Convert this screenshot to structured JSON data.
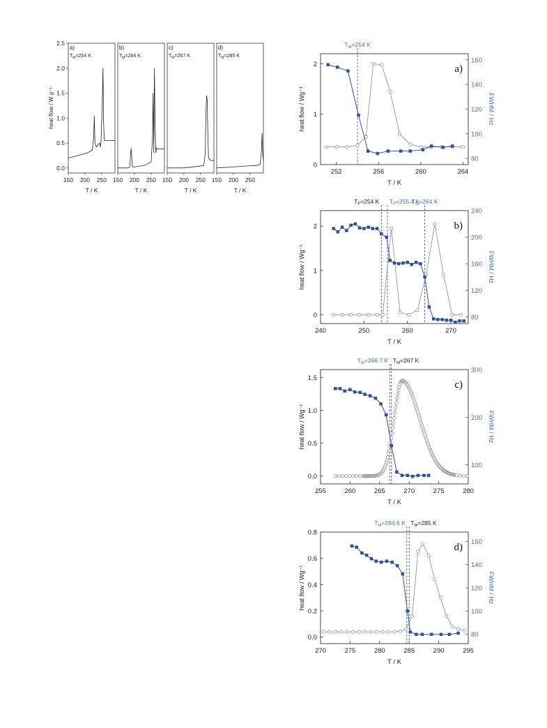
{
  "colors": {
    "axis": "#333333",
    "heat": "#888888",
    "fwhm": "#2f52a3",
    "fwhm_label": "#4a6fb5",
    "black_marker": "#555555"
  },
  "chart_data": [
    {
      "type": "line",
      "id": "small-a",
      "panel_label": "a)",
      "annotation": "T_M=254 K",
      "annotation_main": "T",
      "annotation_sub": "M",
      "annotation_rest": "=254 K",
      "xlabel": "T / K",
      "ylabel": "heat flow / W g⁻¹",
      "xlim": [
        150,
        290
      ],
      "ylim": [
        -0.1,
        2.5
      ],
      "xticks": [
        "150",
        "200",
        "250"
      ],
      "xtick_values": [
        150,
        200,
        250
      ],
      "yticks": [
        "0.0",
        "0.5",
        "1.0",
        "1.5",
        "2.0",
        "2.5"
      ],
      "ytick_values": [
        0,
        0.5,
        1,
        1.5,
        2,
        2.5
      ],
      "series": [
        {
          "x": [
            150,
            170,
            190,
            210,
            222,
            226,
            228,
            230,
            234,
            240,
            244,
            246,
            248,
            252,
            254,
            256,
            258,
            262,
            270,
            280,
            290
          ],
          "y": [
            0.2,
            0.23,
            0.27,
            0.31,
            0.36,
            0.6,
            1.05,
            0.5,
            0.42,
            0.47,
            0.5,
            0.42,
            0.5,
            1.3,
            2.0,
            0.9,
            0.55,
            0.55,
            0.55,
            0.55,
            0.55
          ]
        }
      ]
    },
    {
      "type": "line",
      "id": "small-b",
      "panel_label": "b)",
      "annotation_main": "T",
      "annotation_sub": "M",
      "annotation_rest": "=264 K",
      "xlabel": "T / K",
      "xlim": [
        150,
        290
      ],
      "ylim": [
        -0.1,
        2.5
      ],
      "xticks": [
        "150",
        "200",
        "250"
      ],
      "xtick_values": [
        150,
        200,
        250
      ],
      "series": [
        {
          "x": [
            150,
            180,
            186,
            190,
            194,
            200,
            230,
            250,
            254,
            256,
            258,
            260,
            262,
            264,
            266,
            270,
            280,
            290
          ],
          "y": [
            0.0,
            0.0,
            0.02,
            0.4,
            0.02,
            0.02,
            0.05,
            0.12,
            0.6,
            1.5,
            0.3,
            2.0,
            0.9,
            0.3,
            0.4,
            0.38,
            0.38,
            0.38
          ]
        }
      ]
    },
    {
      "type": "line",
      "id": "small-c",
      "panel_label": "c)",
      "annotation_main": "T",
      "annotation_sub": "M",
      "annotation_rest": "=267 K",
      "xlabel": "T / K",
      "xlim": [
        150,
        290
      ],
      "ylim": [
        -0.1,
        2.5
      ],
      "xticks": [
        "150",
        "200",
        "250"
      ],
      "xtick_values": [
        150,
        200,
        250
      ],
      "series": [
        {
          "x": [
            150,
            200,
            240,
            260,
            264,
            266,
            268,
            270,
            272,
            274,
            280,
            290
          ],
          "y": [
            0.0,
            0.0,
            0.03,
            0.05,
            0.3,
            1.1,
            1.45,
            1.35,
            0.6,
            0.2,
            0.15,
            0.15
          ]
        }
      ]
    },
    {
      "type": "line",
      "id": "small-d",
      "panel_label": "d)",
      "annotation_main": "T",
      "annotation_sub": "M",
      "annotation_rest": "=285 K",
      "xlabel": "T / K",
      "xlim": [
        150,
        290
      ],
      "ylim": [
        -0.1,
        2.5
      ],
      "xticks": [
        "150",
        "200",
        "250"
      ],
      "xtick_values": [
        150,
        200,
        250
      ],
      "series": [
        {
          "x": [
            150,
            200,
            240,
            270,
            280,
            284,
            286,
            288,
            290
          ],
          "y": [
            0.0,
            0.02,
            0.04,
            0.05,
            0.07,
            0.3,
            0.7,
            0.3,
            0.15
          ]
        }
      ]
    },
    {
      "type": "line",
      "id": "big-a",
      "panel_label": "a)",
      "xlabel": "T / K",
      "ylabel": "heat flow / Wg⁻¹",
      "ylabel_right": "FWHM / Hz",
      "xlim": [
        250.5,
        264.5
      ],
      "ylim": [
        0,
        2.2
      ],
      "ylim_right": [
        75,
        165
      ],
      "xticks": [
        "252",
        "256",
        "260",
        "264"
      ],
      "xtick_values": [
        252,
        256,
        260,
        264
      ],
      "yticks": [
        "0",
        "1",
        "2"
      ],
      "ytick_values": [
        0,
        1,
        2
      ],
      "yticks_right": [
        "80",
        "100",
        "120",
        "140",
        "160"
      ],
      "ytick_values_right": [
        80,
        100,
        120,
        140,
        160
      ],
      "vlines": [
        {
          "x": 254,
          "label_main": "T",
          "label_sub": "M",
          "label_rest": "=254 K",
          "color": "blue"
        }
      ],
      "heat": {
        "x": [
          251,
          252,
          253,
          254,
          254.8,
          255.5,
          256.3,
          257.1,
          258,
          259,
          260,
          261,
          262,
          263,
          264
        ],
        "y": [
          0.35,
          0.35,
          0.35,
          0.38,
          0.55,
          2.0,
          1.98,
          1.45,
          0.6,
          0.4,
          0.35,
          0.35,
          0.35,
          0.35,
          0.35
        ]
      },
      "fwhm": {
        "x": [
          251.2,
          252.1,
          253.1,
          254.1,
          255.0,
          255.9,
          256.9,
          258.1,
          259,
          260.2,
          261,
          262.1,
          263
        ],
        "y": [
          156,
          154,
          151,
          115,
          86,
          84,
          86,
          86,
          86,
          87,
          90,
          89,
          90
        ]
      }
    },
    {
      "type": "line",
      "id": "big-b",
      "panel_label": "b)",
      "xlabel": "T / K",
      "ylabel": "heat flow / Wg⁻¹",
      "ylabel_right": "FWHM / Hz",
      "xlim": [
        240,
        274
      ],
      "ylim": [
        -0.2,
        2.35
      ],
      "ylim_right": [
        70,
        240
      ],
      "xticks": [
        "240",
        "250",
        "260",
        "270"
      ],
      "xtick_values": [
        240,
        250,
        260,
        270
      ],
      "yticks": [
        "0",
        "1",
        "2"
      ],
      "ytick_values": [
        0,
        1,
        2
      ],
      "yticks_right": [
        "80",
        "120",
        "160",
        "200",
        "240"
      ],
      "ytick_values_right": [
        80,
        120,
        160,
        200,
        240
      ],
      "vlines": [
        {
          "x": 254,
          "label_main": "T",
          "label_sub": "F",
          "label_rest": "=254 K",
          "color": "black"
        },
        {
          "x": 255.4,
          "label_main": "T",
          "label_sub": "F",
          "label_rest": "=255.4 K",
          "color": "blue"
        },
        {
          "x": 264,
          "label_main": "T",
          "label_sub": "M",
          "label_rest": "=264 K",
          "color": "blue"
        }
      ],
      "heat": {
        "x": [
          243,
          245,
          247,
          249,
          251,
          253,
          254.3,
          256.3,
          258.3,
          260.3,
          262.3,
          264.3,
          266.3,
          268.3,
          270.3,
          272.3
        ],
        "y": [
          0,
          0,
          0,
          0,
          0,
          0,
          0,
          1.95,
          0.05,
          0,
          0.1,
          0.9,
          2.05,
          0.9,
          0,
          0
        ]
      },
      "fwhm": {
        "x": [
          243,
          244,
          245,
          246,
          247,
          248,
          249,
          250,
          251,
          252,
          253,
          254,
          255.2,
          256,
          257,
          258,
          259,
          260,
          261,
          262,
          263,
          264,
          265,
          266,
          267,
          268,
          269,
          270,
          271,
          272,
          273
        ],
        "y": [
          213,
          208,
          215,
          210,
          218,
          220,
          214,
          213,
          215,
          213,
          213,
          205,
          200,
          165,
          161,
          160,
          161,
          162,
          159,
          162,
          160,
          140,
          95,
          77,
          76,
          76,
          75,
          75,
          72,
          74,
          74
        ]
      }
    },
    {
      "type": "line",
      "id": "big-c",
      "panel_label": "c)",
      "xlabel": "T / K",
      "ylabel": "heat flow / Wg⁻¹",
      "ylabel_right": "FWHM / Hz",
      "xlim": [
        255,
        280
      ],
      "ylim": [
        -0.12,
        1.62
      ],
      "ylim_right": [
        60,
        300
      ],
      "xticks": [
        "255",
        "260",
        "265",
        "270",
        "275",
        "280"
      ],
      "xtick_values": [
        255,
        260,
        265,
        270,
        275,
        280
      ],
      "yticks": [
        "0.0",
        "0.5",
        "1.0",
        "1.5"
      ],
      "ytick_values": [
        0,
        0.5,
        1,
        1.5
      ],
      "yticks_right": [
        "100",
        "200",
        "300"
      ],
      "ytick_values_right": [
        100,
        200,
        300
      ],
      "vlines": [
        {
          "x": 266.7,
          "label_main": "T",
          "label_sub": "M",
          "label_rest": "=266.7 K",
          "color": "blue"
        },
        {
          "x": 267,
          "label_main": "T",
          "label_sub": "M",
          "label_rest": "=267 K",
          "color": "black"
        }
      ],
      "heat_peak": {
        "center": 268.8,
        "height": 1.45,
        "rise_width": 1.9,
        "fall_width": 4.2,
        "start": 257.5,
        "end": 280
      },
      "fwhm": {
        "x": [
          257.5,
          258.3,
          259.1,
          260,
          260.8,
          261.7,
          262.5,
          263.4,
          264.3,
          265.2,
          266.1,
          267,
          267.9,
          268.8,
          269.7,
          270.6,
          271.5,
          272.5,
          273.3
        ],
        "y": [
          260,
          260,
          255,
          258,
          253,
          252,
          248,
          245,
          240,
          228,
          205,
          140,
          85,
          78,
          78,
          76,
          78,
          78,
          78
        ]
      }
    },
    {
      "type": "line",
      "id": "big-d",
      "panel_label": "d)",
      "xlabel": "T / K",
      "ylabel": "heat flow / Wg⁻¹",
      "ylabel_right": "FWHM / Hz",
      "xlim": [
        270,
        295
      ],
      "ylim": [
        -0.05,
        0.8
      ],
      "ylim_right": [
        72,
        168
      ],
      "xticks": [
        "270",
        "275",
        "280",
        "285",
        "290",
        "295"
      ],
      "xtick_values": [
        270,
        275,
        280,
        285,
        290,
        295
      ],
      "yticks": [
        "0.0",
        "0.2",
        "0.4",
        "0.6",
        "0.8"
      ],
      "ytick_values": [
        0,
        0.2,
        0.4,
        0.6,
        0.8
      ],
      "yticks_right": [
        "80",
        "100",
        "120",
        "140",
        "160"
      ],
      "ytick_values_right": [
        80,
        100,
        120,
        140,
        160
      ],
      "vlines": [
        {
          "x": 284.6,
          "label_main": "T",
          "label_sub": "M",
          "label_rest": "=284.6 K",
          "color": "blue"
        },
        {
          "x": 285,
          "label_main": "T",
          "label_sub": "M",
          "label_rest": "=285 K",
          "color": "black"
        }
      ],
      "heat": {
        "x": [
          270.5,
          271.5,
          272.5,
          273.5,
          274.5,
          275.5,
          276.5,
          277.5,
          278.5,
          279.5,
          280.5,
          281.5,
          282.5,
          283.5,
          284.5,
          285.5,
          286.5,
          287.3,
          288.3,
          289.3,
          290.3,
          291.3,
          292.3,
          293.3,
          294.3
        ],
        "y": [
          0.04,
          0.04,
          0.04,
          0.04,
          0.04,
          0.04,
          0.04,
          0.04,
          0.04,
          0.04,
          0.04,
          0.04,
          0.04,
          0.045,
          0.06,
          0.16,
          0.65,
          0.71,
          0.62,
          0.44,
          0.3,
          0.16,
          0.08,
          0.06,
          0.05
        ]
      },
      "fwhm": {
        "x": [
          275.3,
          276.1,
          277,
          277.8,
          278.6,
          279.4,
          280.3,
          281.2,
          282.1,
          283,
          283.9,
          284.7,
          285.2,
          286.2,
          287.2,
          288.8,
          290.4,
          291.8,
          293.3
        ],
        "y": [
          156,
          155,
          150,
          148,
          145,
          143,
          142,
          143,
          142,
          139,
          132,
          100,
          82,
          80,
          80,
          80,
          80,
          80,
          81
        ]
      }
    }
  ]
}
